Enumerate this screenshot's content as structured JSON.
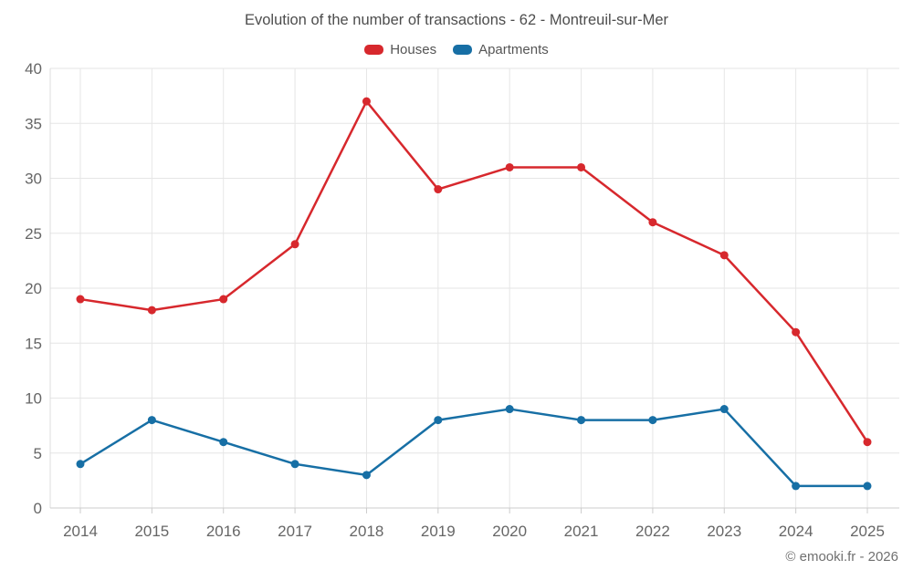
{
  "header": {
    "title": "Evolution of the number of transactions - 62 - Montreuil-sur-Mer"
  },
  "legend": [
    {
      "label": "Houses",
      "color": "#d7282d"
    },
    {
      "label": "Apartments",
      "color": "#176fa5"
    }
  ],
  "footer": {
    "credit": "© emooki.fr - 2026"
  },
  "colors": {
    "background": "#ffffff",
    "grid": "#e6e6e6",
    "plot_border": "#dcdcdc",
    "axis": "#cccccc",
    "tick_label": "#666666",
    "title": "#4d4d4d",
    "footer_text": "#707070"
  },
  "chart_data": {
    "type": "line",
    "title": "Evolution of the number of transactions - 62 - Montreuil-sur-Mer",
    "categories": [
      "2014",
      "2015",
      "2016",
      "2017",
      "2018",
      "2019",
      "2020",
      "2021",
      "2022",
      "2023",
      "2024",
      "2025"
    ],
    "series": [
      {
        "name": "Houses",
        "color": "#d7282d",
        "values": [
          19,
          18,
          19,
          24,
          37,
          29,
          31,
          31,
          26,
          23,
          16,
          6
        ]
      },
      {
        "name": "Apartments",
        "color": "#176fa5",
        "values": [
          4,
          8,
          6,
          4,
          3,
          8,
          9,
          8,
          8,
          9,
          2,
          2
        ]
      }
    ],
    "xlabel": "",
    "ylabel": "",
    "ylim": [
      0,
      40
    ],
    "ytick_step": 5,
    "grid": true,
    "legend_position": "top",
    "marker": "circle"
  }
}
